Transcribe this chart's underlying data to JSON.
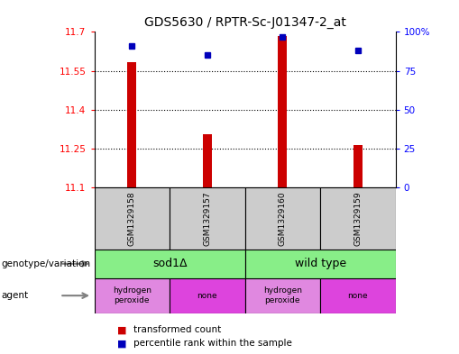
{
  "title": "GDS5630 / RPTR-Sc-J01347-2_at",
  "samples": [
    "GSM1329158",
    "GSM1329157",
    "GSM1329160",
    "GSM1329159"
  ],
  "transformed_counts": [
    11.585,
    11.305,
    11.685,
    11.265
  ],
  "percentile_ranks": [
    91,
    85,
    97,
    88
  ],
  "ylim_left": [
    11.1,
    11.7
  ],
  "ylim_right": [
    0,
    100
  ],
  "yticks_left": [
    11.1,
    11.25,
    11.4,
    11.55,
    11.7
  ],
  "yticks_right": [
    0,
    25,
    50,
    75,
    100
  ],
  "ytick_labels_left": [
    "11.1",
    "11.25",
    "11.4",
    "11.55",
    "11.7"
  ],
  "ytick_labels_right": [
    "0",
    "25",
    "50",
    "75",
    "100%"
  ],
  "bar_color": "#cc0000",
  "dot_color": "#0000bb",
  "bar_width": 0.12,
  "genotype_labels": [
    "sod1Δ",
    "wild type"
  ],
  "genotype_color": "#88ee88",
  "agent_labels": [
    "hydrogen\nperoxide",
    "none",
    "hydrogen\nperoxide",
    "none"
  ],
  "agent_color_h2o2": "#e088e0",
  "agent_color_none": "#dd44dd",
  "sample_box_color": "#cccccc",
  "legend_red_label": "transformed count",
  "legend_blue_label": "percentile rank within the sample",
  "left_label_genotype": "genotype/variation",
  "left_label_agent": "agent"
}
